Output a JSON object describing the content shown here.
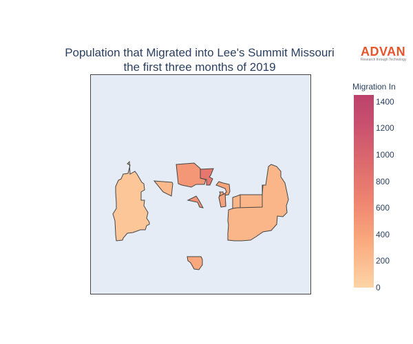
{
  "title_line1": "Population that Migrated into Lee's Summit Missouri",
  "title_line2": "the first three months of 2019",
  "logo": {
    "name": "ADVAN",
    "tagline": "Research through Technology",
    "color": "#e8542a"
  },
  "colorbar": {
    "title": "Migration In",
    "ticks": [
      "1400",
      "1200",
      "1000",
      "800",
      "600",
      "400",
      "200",
      "0"
    ],
    "range": [
      0,
      1450
    ],
    "colors": [
      "#fdd4a6",
      "#f9a87c",
      "#ee8470",
      "#dc6a6e",
      "#c8506e",
      "#bc426c"
    ]
  },
  "map": {
    "background": "#e5ecf6",
    "regions": [
      {
        "id": "west",
        "value": 90
      },
      {
        "id": "north-small",
        "value": 180
      },
      {
        "id": "north-center",
        "value": 430
      },
      {
        "id": "north-center-right",
        "value": 720
      },
      {
        "id": "center-small",
        "value": 320
      },
      {
        "id": "center-sliver",
        "value": 460
      },
      {
        "id": "center-right-small",
        "value": 340
      },
      {
        "id": "east",
        "value": 200
      },
      {
        "id": "south-small",
        "value": 300
      }
    ]
  }
}
